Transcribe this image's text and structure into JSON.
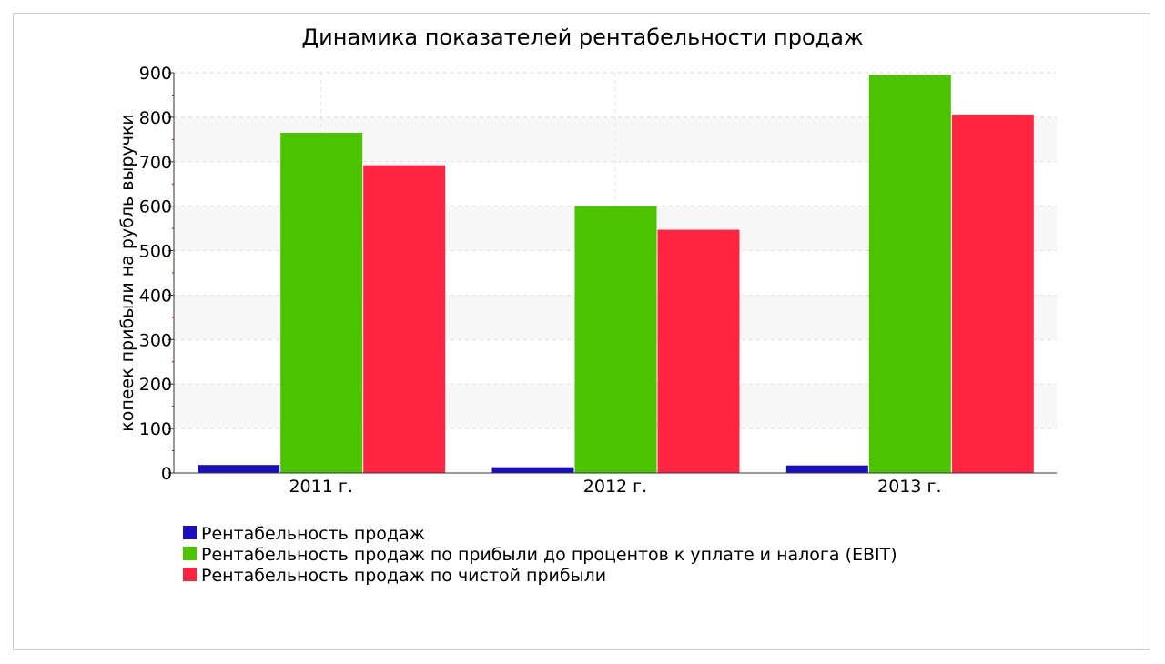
{
  "chart_data": {
    "type": "bar",
    "title": "Динамика показателей рентабельности продаж",
    "xlabel": "",
    "ylabel": "копеек прибыли на рубль выручки",
    "categories": [
      "2011 г.",
      "2012 г.",
      "2013 г."
    ],
    "ylim": [
      0,
      900
    ],
    "yticks": [
      0,
      100,
      200,
      300,
      400,
      500,
      600,
      700,
      800,
      900
    ],
    "grid": true,
    "legend_position": "bottom-left",
    "series": [
      {
        "name": "Рентабельность продаж",
        "color": "#1a0fbf",
        "values": [
          18,
          13,
          17
        ]
      },
      {
        "name": "Рентабельность продаж по прибыли до процентов к уплате и налога (EBIT)",
        "color": "#4cc300",
        "values": [
          765,
          600,
          895
        ]
      },
      {
        "name": "Рентабельность продаж по чистой прибыли",
        "color": "#ff2542",
        "values": [
          692,
          547,
          806
        ]
      }
    ]
  }
}
